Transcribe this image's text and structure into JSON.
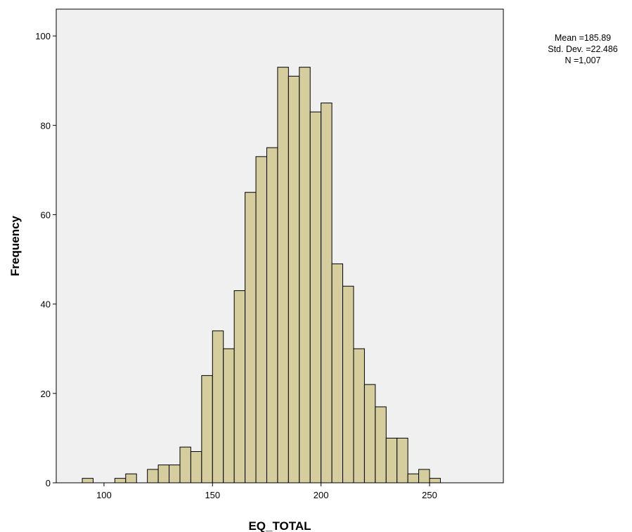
{
  "chart_data": {
    "type": "bar",
    "subtype": "histogram",
    "title": "",
    "xlabel": "EQ_TOTAL",
    "ylabel": "Frequency",
    "xlim": [
      78,
      284
    ],
    "ylim": [
      0,
      106
    ],
    "xticks": [
      100,
      150,
      200,
      250
    ],
    "yticks": [
      0,
      20,
      40,
      60,
      80,
      100
    ],
    "bin_width": 5,
    "bins": [
      {
        "start": 90,
        "value": 1
      },
      {
        "start": 95,
        "value": 0
      },
      {
        "start": 100,
        "value": 0
      },
      {
        "start": 105,
        "value": 1
      },
      {
        "start": 110,
        "value": 2
      },
      {
        "start": 115,
        "value": 0
      },
      {
        "start": 120,
        "value": 3
      },
      {
        "start": 125,
        "value": 4
      },
      {
        "start": 130,
        "value": 4
      },
      {
        "start": 135,
        "value": 8
      },
      {
        "start": 140,
        "value": 7
      },
      {
        "start": 145,
        "value": 24
      },
      {
        "start": 150,
        "value": 34
      },
      {
        "start": 155,
        "value": 30
      },
      {
        "start": 160,
        "value": 43
      },
      {
        "start": 165,
        "value": 65
      },
      {
        "start": 170,
        "value": 73
      },
      {
        "start": 175,
        "value": 75
      },
      {
        "start": 180,
        "value": 93
      },
      {
        "start": 185,
        "value": 91
      },
      {
        "start": 190,
        "value": 93
      },
      {
        "start": 195,
        "value": 83
      },
      {
        "start": 200,
        "value": 85
      },
      {
        "start": 205,
        "value": 49
      },
      {
        "start": 210,
        "value": 44
      },
      {
        "start": 215,
        "value": 30
      },
      {
        "start": 220,
        "value": 22
      },
      {
        "start": 225,
        "value": 17
      },
      {
        "start": 230,
        "value": 10
      },
      {
        "start": 235,
        "value": 10
      },
      {
        "start": 240,
        "value": 2
      },
      {
        "start": 245,
        "value": 3
      },
      {
        "start": 250,
        "value": 1
      }
    ],
    "stats": {
      "mean": "Mean =185.89",
      "std": "Std. Dev. =22.486",
      "n": "N =1,007"
    },
    "colors": {
      "bar_fill": "#d5cd9d",
      "bar_stroke": "#000000",
      "plot_bg": "#f0f0f0"
    },
    "grid": false,
    "legend": "none"
  }
}
